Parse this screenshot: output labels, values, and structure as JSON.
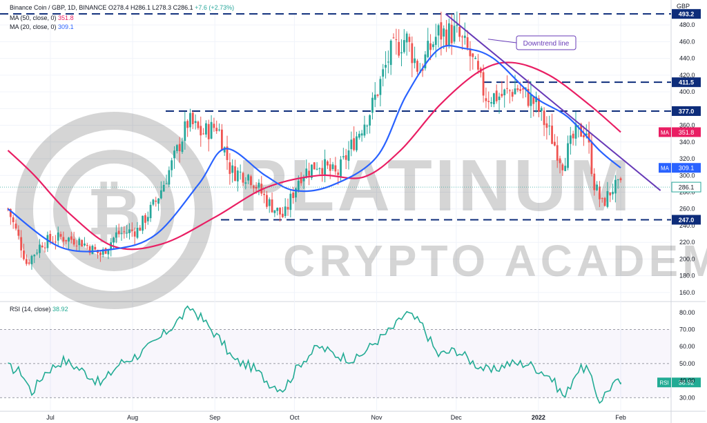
{
  "header": {
    "symbol": "Binance Coin / GBP, 1D, BINANCE",
    "open_label": "O",
    "open": "278.4",
    "high_label": "H",
    "high": "286.1",
    "low_label": "L",
    "low": "278.3",
    "close_label": "C",
    "close": "286.1",
    "change": "+7.6 (+2.73%)",
    "ma50_label": "MA (50, close, 0)",
    "ma50_value": "351.8",
    "ma20_label": "MA (20, close, 0)",
    "ma20_value": "309.1",
    "rsi_label": "RSI (14, close)",
    "rsi_value": "38.92"
  },
  "colors": {
    "up": "#26a69a",
    "down": "#ef5350",
    "ma20": "#2962ff",
    "ma50": "#e91e63",
    "trendline": "#673ab7",
    "level": "#0d2c7a",
    "rsi": "#22ab94",
    "axis_text": "#131722"
  },
  "currency": "GBP",
  "chart_data": [
    {
      "type": "line",
      "title": "Binance Coin / GBP, 1D, BINANCE",
      "ylabel": "GBP",
      "x_ticks": [
        "Jul",
        "Aug",
        "Sep",
        "Oct",
        "Nov",
        "Dec",
        "2022",
        "Feb"
      ],
      "y_ticks": [
        160,
        180,
        200,
        220,
        240,
        260,
        280,
        300,
        320,
        340,
        360,
        380,
        400,
        420,
        440,
        460,
        480
      ],
      "ylim": [
        150,
        495
      ],
      "horizontal_levels": [
        493.2,
        411.5,
        377.0,
        247.0
      ],
      "price_labels": {
        "close": "286.1",
        "ma20": "309.1",
        "ma50": "351.8"
      },
      "annotation": "Downtrend line",
      "candle_points": [
        [
          "2021-06-15",
          260
        ],
        [
          "2021-06-19",
          225
        ],
        [
          "2021-06-22",
          195
        ],
        [
          "2021-06-28",
          220
        ],
        [
          "2021-07-05",
          226
        ],
        [
          "2021-07-12",
          222
        ],
        [
          "2021-07-20",
          205
        ],
        [
          "2021-07-26",
          230
        ],
        [
          "2021-08-03",
          235
        ],
        [
          "2021-08-10",
          270
        ],
        [
          "2021-08-16",
          315
        ],
        [
          "2021-08-22",
          365
        ],
        [
          "2021-08-27",
          350
        ],
        [
          "2021-09-02",
          360
        ],
        [
          "2021-09-07",
          305
        ],
        [
          "2021-09-14",
          300
        ],
        [
          "2021-09-21",
          268
        ],
        [
          "2021-09-27",
          250
        ],
        [
          "2021-10-03",
          300
        ],
        [
          "2021-10-10",
          315
        ],
        [
          "2021-10-17",
          300
        ],
        [
          "2021-10-24",
          345
        ],
        [
          "2021-10-30",
          380
        ],
        [
          "2021-11-06",
          445
        ],
        [
          "2021-11-12",
          465
        ],
        [
          "2021-11-17",
          425
        ],
        [
          "2021-11-24",
          470
        ],
        [
          "2021-12-01",
          470
        ],
        [
          "2021-12-06",
          445
        ],
        [
          "2021-12-12",
          395
        ],
        [
          "2021-12-18",
          395
        ],
        [
          "2021-12-24",
          405
        ],
        [
          "2021-12-31",
          385
        ],
        [
          "2022-01-06",
          345
        ],
        [
          "2022-01-10",
          315
        ],
        [
          "2022-01-15",
          350
        ],
        [
          "2022-01-19",
          355
        ],
        [
          "2022-01-22",
          290
        ],
        [
          "2022-01-25",
          265
        ],
        [
          "2022-01-29",
          285
        ],
        [
          "2022-02-01",
          286.1
        ]
      ],
      "series": [
        {
          "name": "MA (20, close, 0)",
          "points": [
            [
              "2021-06-15",
              260
            ],
            [
              "2021-07-05",
              214
            ],
            [
              "2021-07-25",
              212
            ],
            [
              "2021-08-10",
              230
            ],
            [
              "2021-08-26",
              290
            ],
            [
              "2021-09-05",
              332
            ],
            [
              "2021-09-20",
              300
            ],
            [
              "2021-10-01",
              282
            ],
            [
              "2021-10-15",
              288
            ],
            [
              "2021-11-01",
              322
            ],
            [
              "2021-11-12",
              395
            ],
            [
              "2021-11-24",
              450
            ],
            [
              "2021-12-04",
              452
            ],
            [
              "2021-12-15",
              440
            ],
            [
              "2021-12-30",
              395
            ],
            [
              "2022-01-12",
              370
            ],
            [
              "2022-01-24",
              330
            ],
            [
              "2022-02-01",
              309.1
            ]
          ]
        },
        {
          "name": "MA (50, close, 0)",
          "points": [
            [
              "2021-06-15",
              330
            ],
            [
              "2021-06-25",
              300
            ],
            [
              "2021-07-08",
              255
            ],
            [
              "2021-07-25",
              215
            ],
            [
              "2021-08-12",
              218
            ],
            [
              "2021-09-01",
              250
            ],
            [
              "2021-09-20",
              285
            ],
            [
              "2021-10-10",
              300
            ],
            [
              "2021-10-27",
              298
            ],
            [
              "2021-11-10",
              330
            ],
            [
              "2021-11-25",
              385
            ],
            [
              "2021-12-10",
              425
            ],
            [
              "2021-12-22",
              435
            ],
            [
              "2022-01-05",
              420
            ],
            [
              "2022-01-20",
              385
            ],
            [
              "2022-02-01",
              351.8
            ]
          ]
        }
      ]
    },
    {
      "type": "line",
      "title": "RSI (14, close)",
      "y_ticks": [
        30,
        40,
        50,
        60,
        70,
        80
      ],
      "ylim": [
        22,
        86
      ],
      "guide_lines": [
        70,
        50,
        30
      ],
      "series": [
        {
          "name": "RSI (14, close)",
          "points": [
            [
              "2021-06-15",
              48
            ],
            [
              "2021-06-20",
              45
            ],
            [
              "2021-06-24",
              33
            ],
            [
              "2021-06-29",
              45
            ],
            [
              "2021-07-06",
              52
            ],
            [
              "2021-07-13",
              46
            ],
            [
              "2021-07-20",
              38
            ],
            [
              "2021-07-27",
              50
            ],
            [
              "2021-08-03",
              55
            ],
            [
              "2021-08-10",
              63
            ],
            [
              "2021-08-16",
              72
            ],
            [
              "2021-08-23",
              83
            ],
            [
              "2021-08-29",
              73
            ],
            [
              "2021-09-04",
              62
            ],
            [
              "2021-09-08",
              52
            ],
            [
              "2021-09-15",
              48
            ],
            [
              "2021-09-22",
              38
            ],
            [
              "2021-09-27",
              35
            ],
            [
              "2021-10-03",
              50
            ],
            [
              "2021-10-10",
              60
            ],
            [
              "2021-10-17",
              55
            ],
            [
              "2021-10-24",
              52
            ],
            [
              "2021-10-31",
              62
            ],
            [
              "2021-11-08",
              72
            ],
            [
              "2021-11-12",
              80
            ],
            [
              "2021-11-18",
              73
            ],
            [
              "2021-11-24",
              55
            ],
            [
              "2021-12-01",
              58
            ],
            [
              "2021-12-08",
              50
            ],
            [
              "2021-12-14",
              45
            ],
            [
              "2021-12-20",
              50
            ],
            [
              "2021-12-28",
              50
            ],
            [
              "2022-01-05",
              43
            ],
            [
              "2022-01-11",
              30
            ],
            [
              "2022-01-15",
              45
            ],
            [
              "2022-01-19",
              48
            ],
            [
              "2022-01-24",
              28
            ],
            [
              "2022-01-29",
              38
            ],
            [
              "2022-02-01",
              38.92
            ]
          ]
        }
      ]
    }
  ]
}
